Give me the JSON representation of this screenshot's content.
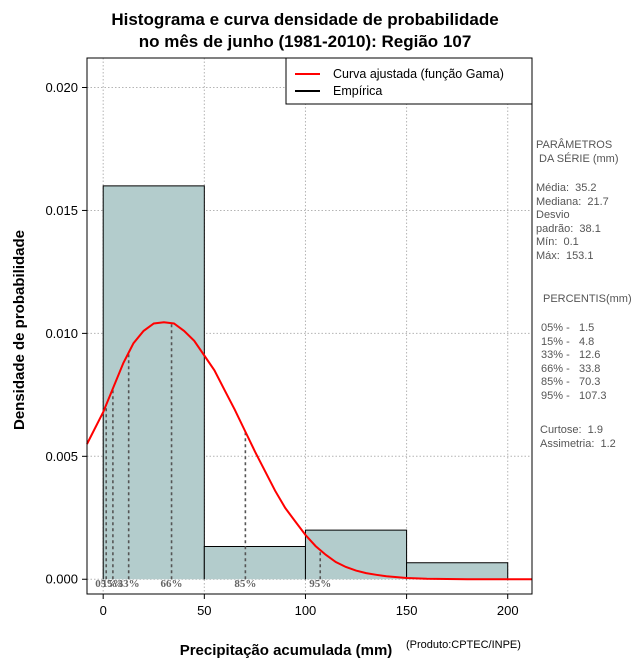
{
  "chart_data": {
    "type": "bar",
    "title_line1": "Histograma e curva densidade de probabilidade",
    "title_line2": "no mês de junho (1981-2010): Região 107",
    "xlabel": "Precipitação acumulada (mm)",
    "ylabel": "Densidade de probabilidade",
    "credit": "(Produto:CPTEC/INPE)",
    "xlim": [
      -8,
      212
    ],
    "ylim": [
      -0.0006,
      0.0212
    ],
    "x_ticks": [
      0,
      50,
      100,
      150,
      200
    ],
    "y_ticks": [
      0.0,
      0.005,
      0.01,
      0.015,
      0.02
    ],
    "y_tick_labels": [
      "0.000",
      "0.005",
      "0.010",
      "0.015",
      "0.020"
    ],
    "grid": true,
    "legend_position": "top-right",
    "bins": [
      {
        "x0": 0,
        "x1": 50,
        "density": 0.016
      },
      {
        "x0": 50,
        "x1": 100,
        "density": 0.00133
      },
      {
        "x0": 100,
        "x1": 150,
        "density": 0.002
      },
      {
        "x0": 150,
        "x1": 200,
        "density": 0.00067
      }
    ],
    "bar_color": "#b3cccc",
    "series": [
      {
        "name": "Curva ajustada (função Gama)",
        "color": "#ff0000",
        "x": [
          -8,
          0,
          5,
          10,
          15,
          20,
          25,
          30,
          35,
          40,
          45,
          50,
          55,
          60,
          65,
          70,
          75,
          80,
          85,
          90,
          95,
          100,
          105,
          110,
          115,
          120,
          125,
          130,
          135,
          140,
          150,
          160,
          170,
          180,
          190,
          200,
          212
        ],
        "y": [
          0.0055,
          0.0068,
          0.0078,
          0.0088,
          0.0096,
          0.0101,
          0.0104,
          0.01045,
          0.0104,
          0.0101,
          0.0097,
          0.0091,
          0.0085,
          0.0077,
          0.0069,
          0.00605,
          0.0052,
          0.0044,
          0.0036,
          0.0029,
          0.00235,
          0.0018,
          0.00135,
          0.001,
          0.0007,
          0.0005,
          0.00035,
          0.00025,
          0.00018,
          0.00012,
          5e-05,
          2e-05,
          1e-05,
          0.0,
          0.0,
          0.0,
          0.0
        ]
      },
      {
        "name": "Empírica",
        "color": "#000000"
      }
    ],
    "percentile_markers": [
      {
        "label": "05%",
        "x": 1.5
      },
      {
        "label": "15%",
        "x": 4.8
      },
      {
        "label": "33%",
        "x": 12.6
      },
      {
        "label": "66%",
        "x": 33.8
      },
      {
        "label": "85%",
        "x": 70.3
      },
      {
        "label": "95%",
        "x": 107.3
      }
    ]
  },
  "stats": {
    "header": "PARÂMETROS\n DA SÉRIE (mm)",
    "params": "Média:  35.2\nMediana:  21.7\nDesvio\npadrão:  38.1\nMín:  0.1\nMáx:  153.1",
    "percentis_header": "PERCENTIS(mm)",
    "percentis": " 05% -   1.5\n 15% -   4.8\n 33% -   12.6\n 66% -   33.8\n 85% -   70.3\n 95% -   107.3",
    "shape": "Curtose:  1.9\nAssimetria:  1.2"
  }
}
